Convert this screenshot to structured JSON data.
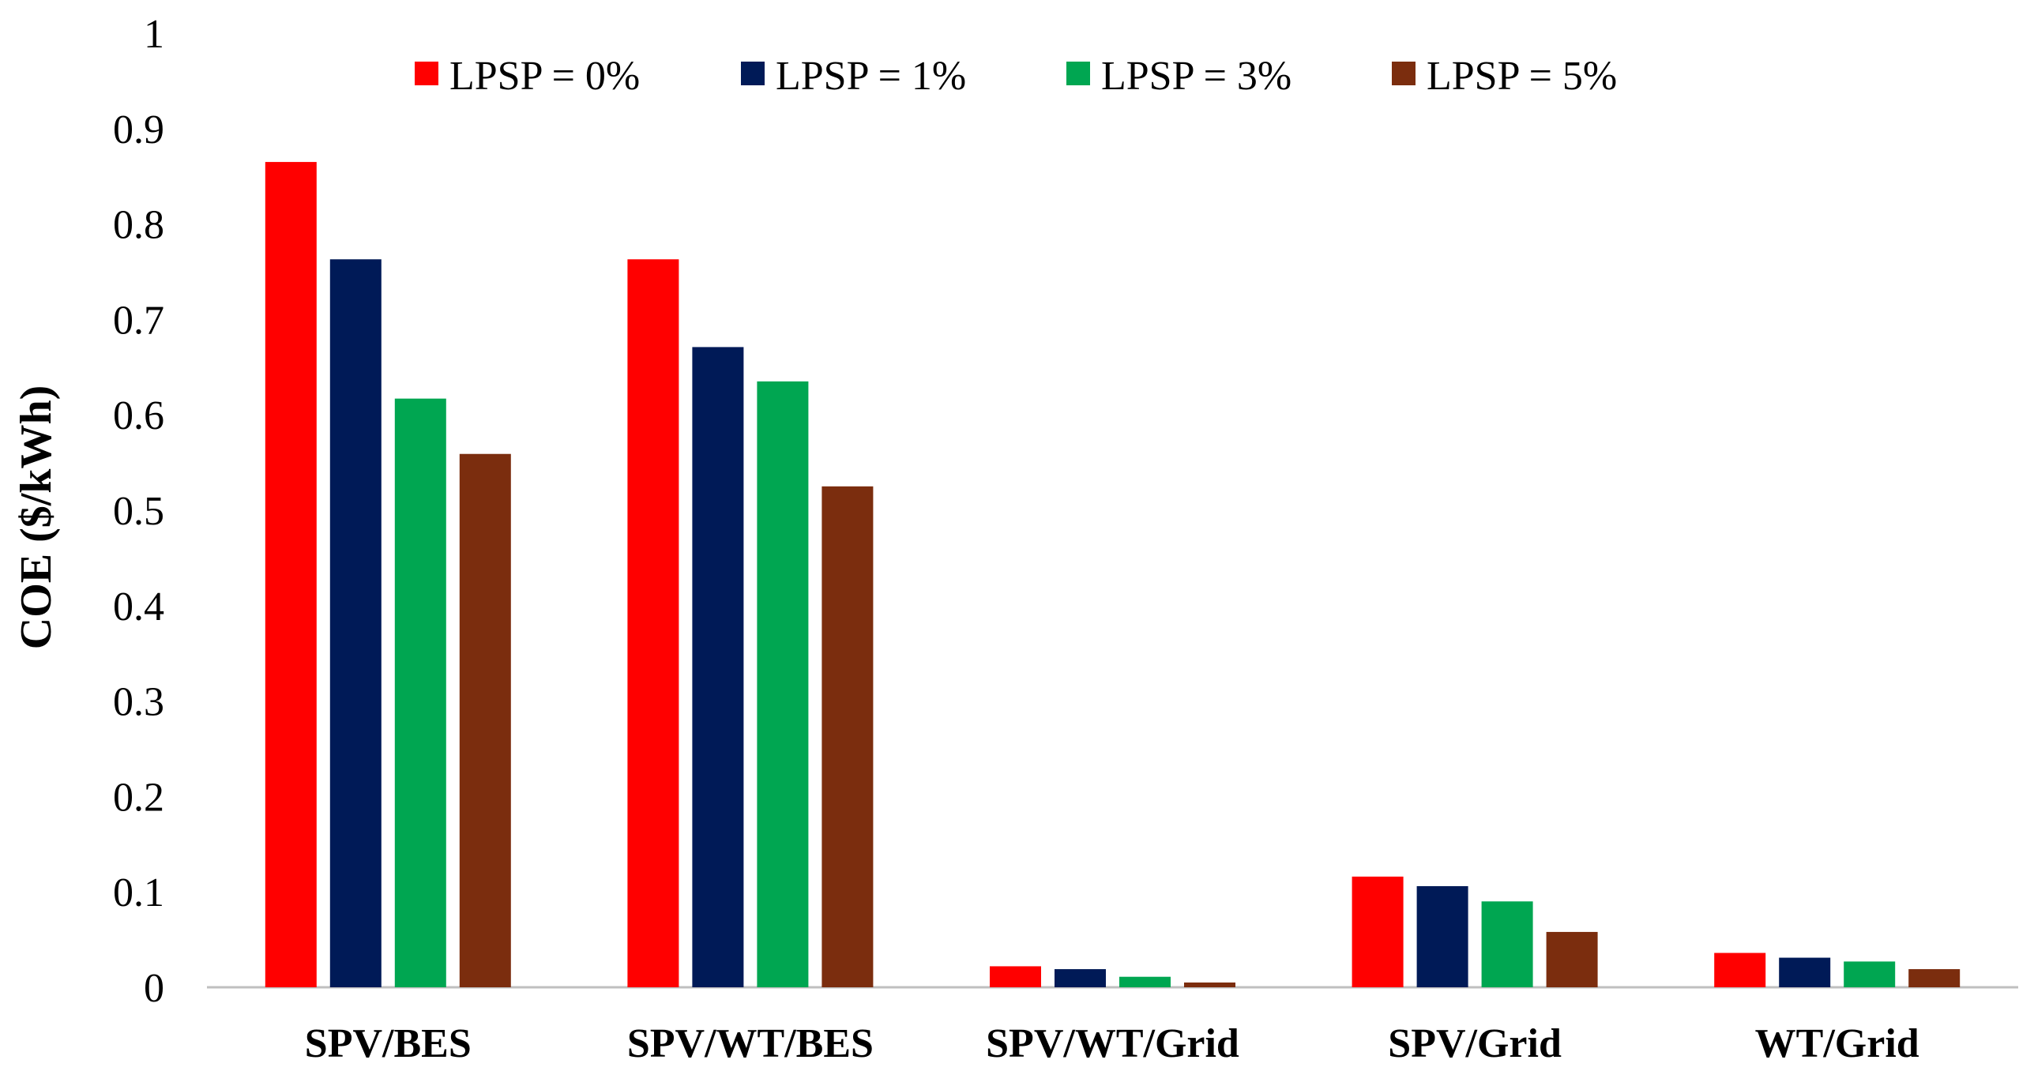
{
  "chart_data": {
    "type": "bar",
    "title": "",
    "xlabel": "",
    "ylabel": "COE ($/kWh)",
    "ylim": [
      0,
      1
    ],
    "yticks": [
      "0",
      "0.1",
      "0.2",
      "0.3",
      "0.4",
      "0.5",
      "0.6",
      "0.7",
      "0.8",
      "0.9",
      "1"
    ],
    "grid": false,
    "legend_position": "top-center",
    "categories": [
      "SPV/BES",
      "SPV/WT/BES",
      "SPV/WT/Grid",
      "SPV/Grid",
      "WT/Grid"
    ],
    "series": [
      {
        "name": "LPSP = 0%",
        "color": "#ff0000",
        "values": [
          0.865,
          0.763,
          0.022,
          0.116,
          0.036
        ]
      },
      {
        "name": "LPSP = 1%",
        "color": "#001a57",
        "values": [
          0.763,
          0.671,
          0.019,
          0.106,
          0.031
        ]
      },
      {
        "name": "LPSP = 3%",
        "color": "#00a651",
        "values": [
          0.617,
          0.635,
          0.011,
          0.09,
          0.027
        ]
      },
      {
        "name": "LPSP = 5%",
        "color": "#7b2d0e",
        "values": [
          0.559,
          0.525,
          0.005,
          0.058,
          0.019
        ]
      }
    ]
  }
}
